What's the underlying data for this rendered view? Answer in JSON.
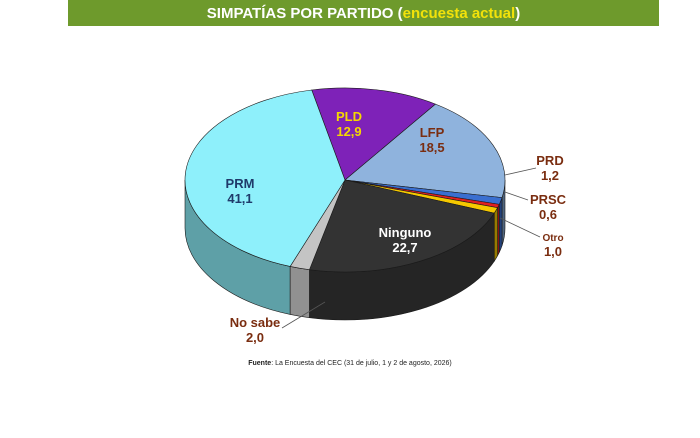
{
  "header": {
    "title_main": "SIMPATÍAS POR PARTIDO",
    "title_open": "(",
    "title_highlight": "encuesta actual",
    "title_close": ")"
  },
  "source": {
    "label": "Fuente",
    "text": ": La Encuesta del CEC (31 de julio, 1 y 2 de agosto, 2026)"
  },
  "chart_data": {
    "type": "pie",
    "style": "3d",
    "slices": [
      {
        "label": "PLD",
        "value": 12.9,
        "value_text": "12,9",
        "color": "#7e22b8",
        "label_color": "#f5d800"
      },
      {
        "label": "LFP",
        "value": 18.5,
        "value_text": "18,5",
        "color": "#8fb3dd",
        "label_color": "#7a2d10"
      },
      {
        "label": "PRD",
        "value": 1.2,
        "value_text": "1,2",
        "color": "#3a6fd0",
        "label_color": "#7a2d10"
      },
      {
        "label": "PRSC",
        "value": 0.6,
        "value_text": "0,6",
        "color": "#e02020",
        "label_color": "#7a2d10"
      },
      {
        "label": "Otro",
        "value": 1.0,
        "value_text": "1,0",
        "color": "#f5c800",
        "label_color": "#7a2d10"
      },
      {
        "label": "Ninguno",
        "value": 22.7,
        "value_text": "22,7",
        "color": "#333333",
        "label_color": "#ffffff"
      },
      {
        "label": "No sabe",
        "value": 2.0,
        "value_text": "2,0",
        "color": "#c4c4c4",
        "label_color": "#7a2d10"
      },
      {
        "label": "PRM",
        "value": 41.1,
        "value_text": "41,1",
        "color": "#8ef0fb",
        "label_color": "#1f3a6a"
      }
    ]
  }
}
